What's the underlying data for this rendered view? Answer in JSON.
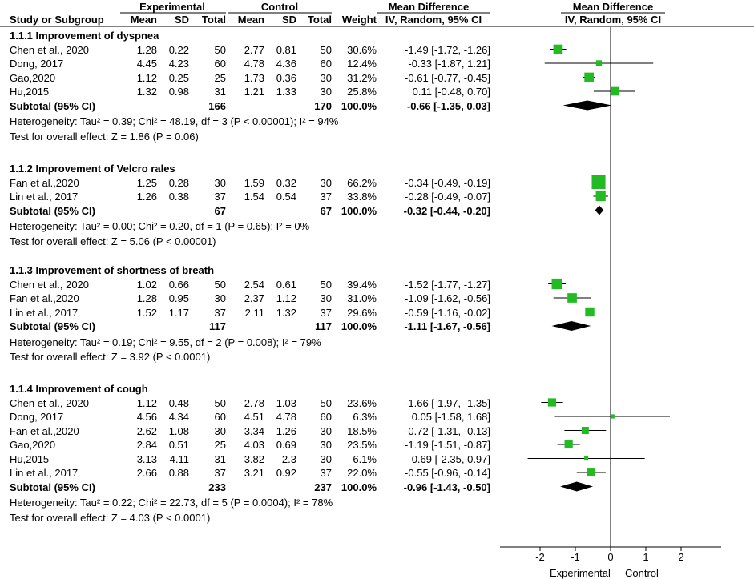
{
  "headers": {
    "experimental": "Experimental",
    "control": "Control",
    "mean_difference": "Mean Difference",
    "study": "Study or Subgroup",
    "mean_e": "Mean",
    "sd_e": "SD",
    "total_e": "Total",
    "mean_c": "Mean",
    "sd_c": "SD",
    "total_c": "Total",
    "weight": "Weight",
    "ci_col": "IV, Random, 95% CI",
    "ci_plot": "IV, Random, 95% CI"
  },
  "groups": [
    {
      "title": "1.1.1 Improvement of dyspnea",
      "studies": [
        {
          "name": "Chen et al., 2020",
          "me": "1.28",
          "sde": "0.22",
          "ne": "50",
          "mc": "2.77",
          "sdc": "0.81",
          "nc": "50",
          "w": "30.6%",
          "ci": "-1.49 [-1.72, -1.26]",
          "md": -1.49,
          "lo": -1.72,
          "hi": -1.26,
          "wt": 30.6
        },
        {
          "name": "Dong, 2017",
          "me": "4.45",
          "sde": "4.23",
          "ne": "60",
          "mc": "4.78",
          "sdc": "4.36",
          "nc": "60",
          "w": "12.4%",
          "ci": "-0.33 [-1.87, 1.21]",
          "md": -0.33,
          "lo": -1.87,
          "hi": 1.21,
          "wt": 12.4
        },
        {
          "name": "Gao,2020",
          "me": "1.12",
          "sde": "0.25",
          "ne": "25",
          "mc": "1.73",
          "sdc": "0.36",
          "nc": "30",
          "w": "31.2%",
          "ci": "-0.61 [-0.77, -0.45]",
          "md": -0.61,
          "lo": -0.77,
          "hi": -0.45,
          "wt": 31.2
        },
        {
          "name": "Hu,2015",
          "me": "1.32",
          "sde": "0.98",
          "ne": "31",
          "mc": "1.21",
          "sdc": "1.33",
          "nc": "30",
          "w": "25.8%",
          "ci": "0.11 [-0.48, 0.70]",
          "md": 0.11,
          "lo": -0.48,
          "hi": 0.7,
          "wt": 25.8
        }
      ],
      "subtotal": {
        "label": "Subtotal (95% CI)",
        "ne": "166",
        "nc": "170",
        "w": "100.0%",
        "ci": "-0.66 [-1.35, 0.03]",
        "md": -0.66,
        "lo": -1.35,
        "hi": 0.03
      },
      "heterogeneity": "Heterogeneity: Tau² = 0.39; Chi² = 48.19, df = 3 (P < 0.00001); I² = 94%",
      "overall": "Test for overall effect: Z = 1.86 (P = 0.06)"
    },
    {
      "title": "1.1.2 Improvement of Velcro rales",
      "studies": [
        {
          "name": "Fan et al.,2020",
          "me": "1.25",
          "sde": "0.28",
          "ne": "30",
          "mc": "1.59",
          "sdc": "0.32",
          "nc": "30",
          "w": "66.2%",
          "ci": "-0.34 [-0.49, -0.19]",
          "md": -0.34,
          "lo": -0.49,
          "hi": -0.19,
          "wt": 66.2
        },
        {
          "name": "Lin et al., 2017",
          "me": "1.26",
          "sde": "0.38",
          "ne": "37",
          "mc": "1.54",
          "sdc": "0.54",
          "nc": "37",
          "w": "33.8%",
          "ci": "-0.28 [-0.49, -0.07]",
          "md": -0.28,
          "lo": -0.49,
          "hi": -0.07,
          "wt": 33.8
        }
      ],
      "subtotal": {
        "label": "Subtotal (95% CI)",
        "ne": "67",
        "nc": "67",
        "w": "100.0%",
        "ci": "-0.32 [-0.44, -0.20]",
        "md": -0.32,
        "lo": -0.44,
        "hi": -0.2
      },
      "heterogeneity": "Heterogeneity: Tau² = 0.00; Chi² = 0.20, df = 1 (P = 0.65); I² = 0%",
      "overall": "Test for overall effect: Z = 5.06 (P < 0.00001)"
    },
    {
      "title": "1.1.3 Improvement of shortness of breath",
      "studies": [
        {
          "name": "Chen et al., 2020",
          "me": "1.02",
          "sde": "0.66",
          "ne": "50",
          "mc": "2.54",
          "sdc": "0.61",
          "nc": "50",
          "w": "39.4%",
          "ci": "-1.52 [-1.77, -1.27]",
          "md": -1.52,
          "lo": -1.77,
          "hi": -1.27,
          "wt": 39.4
        },
        {
          "name": "Fan et al.,2020",
          "me": "1.28",
          "sde": "0.95",
          "ne": "30",
          "mc": "2.37",
          "sdc": "1.12",
          "nc": "30",
          "w": "31.0%",
          "ci": "-1.09 [-1.62, -0.56]",
          "md": -1.09,
          "lo": -1.62,
          "hi": -0.56,
          "wt": 31.0
        },
        {
          "name": "Lin et al., 2017",
          "me": "1.52",
          "sde": "1.17",
          "ne": "37",
          "mc": "2.11",
          "sdc": "1.32",
          "nc": "37",
          "w": "29.6%",
          "ci": "-0.59 [-1.16, -0.02]",
          "md": -0.59,
          "lo": -1.16,
          "hi": -0.02,
          "wt": 29.6
        }
      ],
      "subtotal": {
        "label": "Subtotal (95% CI)",
        "ne": "117",
        "nc": "117",
        "w": "100.0%",
        "ci": "-1.11 [-1.67, -0.56]",
        "md": -1.11,
        "lo": -1.67,
        "hi": -0.56
      },
      "heterogeneity": "Heterogeneity: Tau² = 0.19; Chi² = 9.55, df = 2 (P = 0.008); I² = 79%",
      "overall": "Test for overall effect: Z = 3.92 (P < 0.0001)"
    },
    {
      "title": "1.1.4 Improvement of cough",
      "studies": [
        {
          "name": "Chen et al., 2020",
          "me": "1.12",
          "sde": "0.48",
          "ne": "50",
          "mc": "2.78",
          "sdc": "1.03",
          "nc": "50",
          "w": "23.6%",
          "ci": "-1.66 [-1.97, -1.35]",
          "md": -1.66,
          "lo": -1.97,
          "hi": -1.35,
          "wt": 23.6
        },
        {
          "name": "Dong, 2017",
          "me": "4.56",
          "sde": "4.34",
          "ne": "60",
          "mc": "4.51",
          "sdc": "4.78",
          "nc": "60",
          "w": "6.3%",
          "ci": "0.05 [-1.58, 1.68]",
          "md": 0.05,
          "lo": -1.58,
          "hi": 1.68,
          "wt": 6.3
        },
        {
          "name": "Fan et al.,2020",
          "me": "2.62",
          "sde": "1.08",
          "ne": "30",
          "mc": "3.34",
          "sdc": "1.26",
          "nc": "30",
          "w": "18.5%",
          "ci": "-0.72 [-1.31, -0.13]",
          "md": -0.72,
          "lo": -1.31,
          "hi": -0.13,
          "wt": 18.5
        },
        {
          "name": "Gao,2020",
          "me": "2.84",
          "sde": "0.51",
          "ne": "25",
          "mc": "4.03",
          "sdc": "0.69",
          "nc": "30",
          "w": "23.5%",
          "ci": "-1.19 [-1.51, -0.87]",
          "md": -1.19,
          "lo": -1.51,
          "hi": -0.87,
          "wt": 23.5
        },
        {
          "name": "Hu,2015",
          "me": "3.13",
          "sde": "4.11",
          "ne": "31",
          "mc": "3.82",
          "sdc": "2.3",
          "nc": "30",
          "w": "6.1%",
          "ci": "-0.69 [-2.35, 0.97]",
          "md": -0.69,
          "lo": -2.35,
          "hi": 0.97,
          "wt": 6.1
        },
        {
          "name": "Lin et al., 2017",
          "me": "2.66",
          "sde": "0.88",
          "ne": "37",
          "mc": "3.21",
          "sdc": "0.92",
          "nc": "37",
          "w": "22.0%",
          "ci": "-0.55 [-0.96, -0.14]",
          "md": -0.55,
          "lo": -0.96,
          "hi": -0.14,
          "wt": 22.0
        }
      ],
      "subtotal": {
        "label": "Subtotal (95% CI)",
        "ne": "233",
        "nc": "237",
        "w": "100.0%",
        "ci": "-0.96 [-1.43, -0.50]",
        "md": -0.96,
        "lo": -1.43,
        "hi": -0.5
      },
      "heterogeneity": "Heterogeneity: Tau² = 0.22; Chi² = 22.73, df = 5 (P = 0.0004); I² = 78%",
      "overall": "Test for overall effect: Z = 4.03 (P < 0.0001)"
    }
  ],
  "axis": {
    "ticks": [
      "-2",
      "-1",
      "0",
      "1",
      "2"
    ],
    "tick_values": [
      -2,
      -1,
      0,
      1,
      2
    ],
    "xlim": [
      -3.2,
      3.2
    ],
    "left_label": "Experimental",
    "right_label": "Control"
  },
  "colors": {
    "square": "#22bb22",
    "diamond": "#000000",
    "line": "#000000"
  },
  "chart_data": {
    "type": "forest",
    "title": "Mean Difference IV, Random, 95% CI",
    "xlabel_left": "Experimental",
    "xlabel_right": "Control",
    "xticks": [
      -2,
      -1,
      0,
      1,
      2
    ],
    "series": [
      {
        "name": "1.1.1 Improvement of dyspnea",
        "md": [
          -1.49,
          -0.33,
          -0.61,
          0.11
        ],
        "lo": [
          -1.72,
          -1.87,
          -0.77,
          -0.48
        ],
        "hi": [
          -1.26,
          1.21,
          -0.45,
          0.7
        ],
        "pooled": [
          -0.66,
          -1.35,
          0.03
        ]
      },
      {
        "name": "1.1.2 Improvement of Velcro rales",
        "md": [
          -0.34,
          -0.28
        ],
        "lo": [
          -0.49,
          -0.49
        ],
        "hi": [
          -0.19,
          -0.07
        ],
        "pooled": [
          -0.32,
          -0.44,
          -0.2
        ]
      },
      {
        "name": "1.1.3 Improvement of shortness of breath",
        "md": [
          -1.52,
          -1.09,
          -0.59
        ],
        "lo": [
          -1.77,
          -1.62,
          -1.16
        ],
        "hi": [
          -1.27,
          -0.56,
          -0.02
        ],
        "pooled": [
          -1.11,
          -1.67,
          -0.56
        ]
      },
      {
        "name": "1.1.4 Improvement of cough",
        "md": [
          -1.66,
          0.05,
          -0.72,
          -1.19,
          -0.69,
          -0.55
        ],
        "lo": [
          -1.97,
          -1.58,
          -1.31,
          -1.51,
          -2.35,
          -0.96
        ],
        "hi": [
          -1.35,
          1.68,
          -0.13,
          -0.87,
          0.97,
          -0.14
        ],
        "pooled": [
          -0.96,
          -1.43,
          -0.5
        ]
      }
    ]
  }
}
